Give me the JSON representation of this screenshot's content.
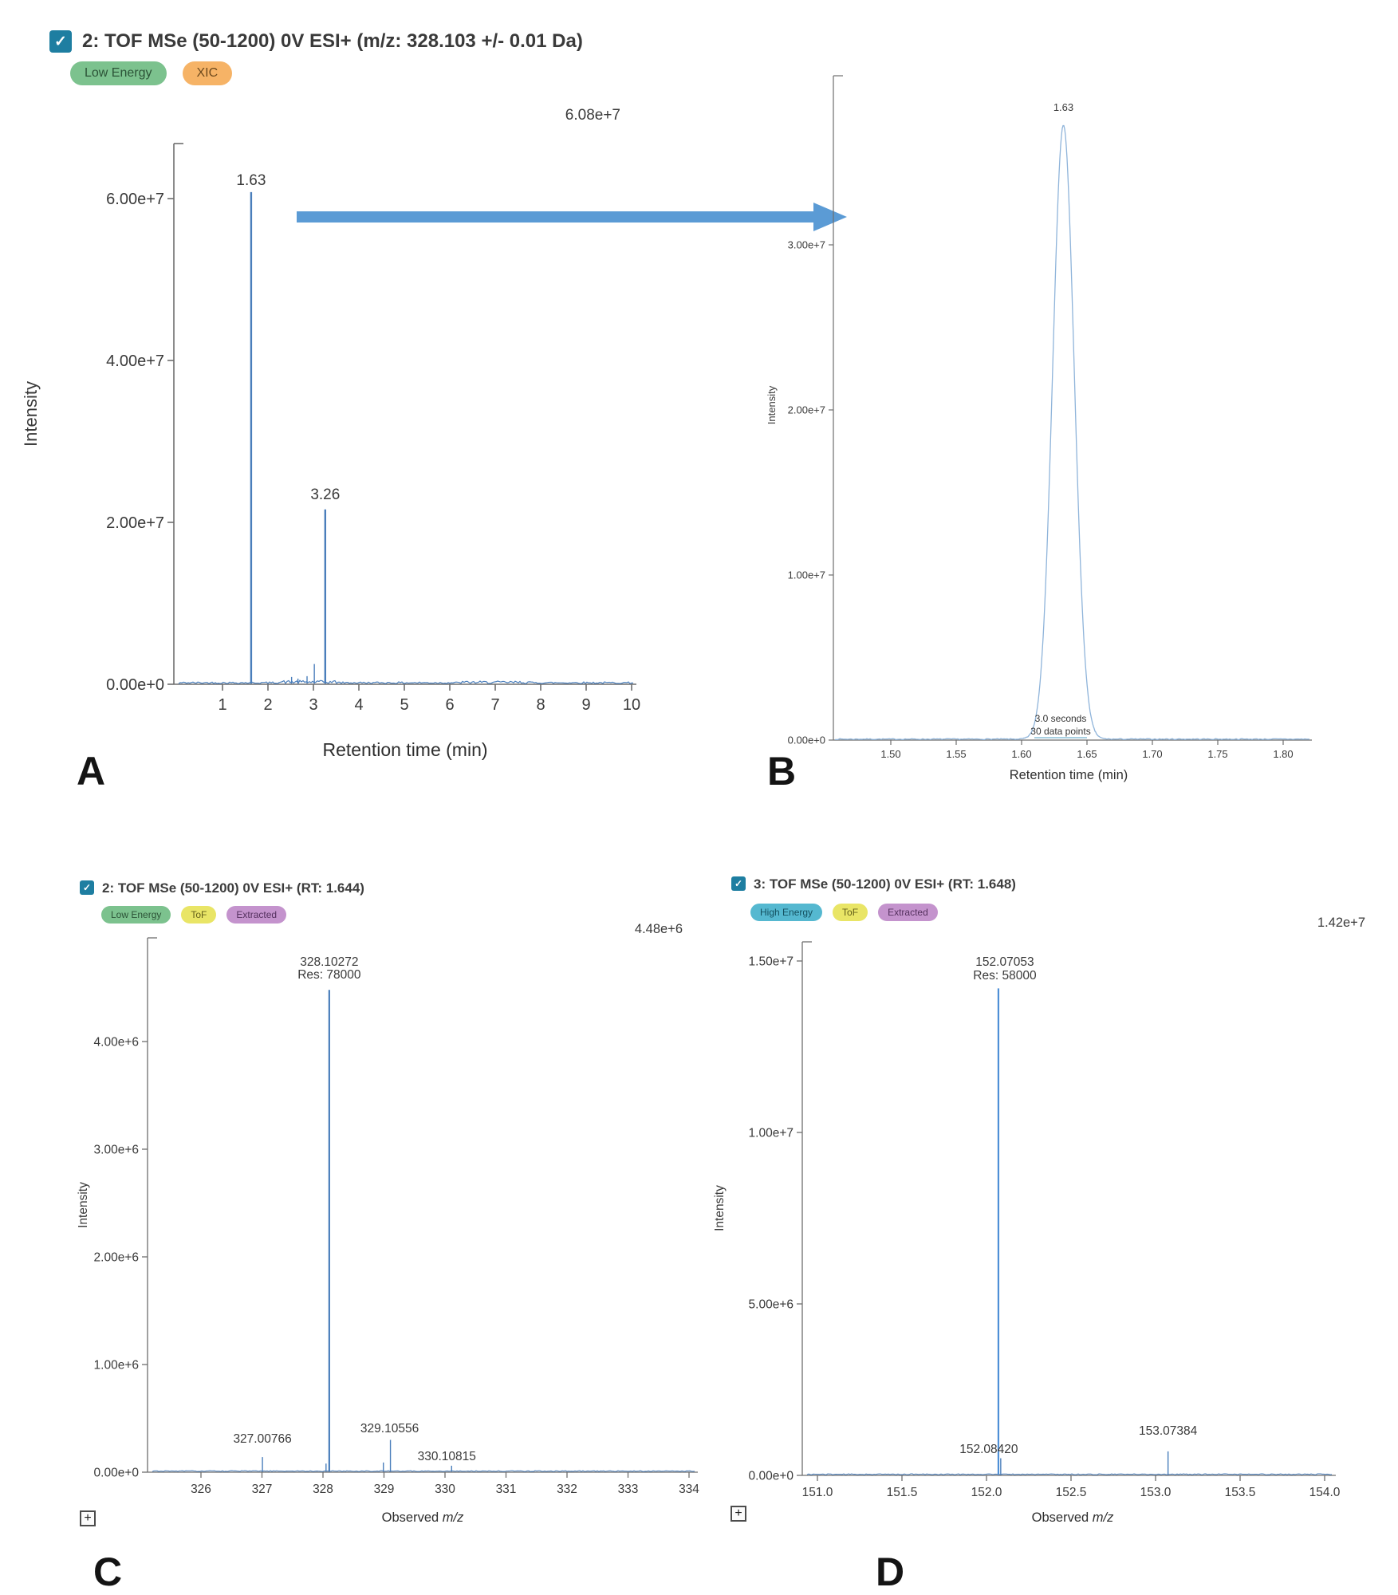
{
  "icons": {
    "check": "✓",
    "plus": "+"
  },
  "colors": {
    "checkbox": "#1e7ea1",
    "trace_blue": "#4a7ebb",
    "zoom_trace_blue": "#8fb4da",
    "main_stick_blue": "#4f8fd6",
    "arrow_blue": "#5b9bd5",
    "axis_gray": "#6e6e6e",
    "text_gray": "#3a3a3a"
  },
  "header": {
    "title": "2: TOF MSe (50-1200) 0V ESI+ (m/z: 328.103 +/- 0.01 Da)",
    "badges": [
      {
        "label": "Low Energy",
        "bg": "#7cc28e",
        "fg": "#2c5337"
      },
      {
        "label": "XIC",
        "bg": "#f6b366",
        "fg": "#6e4a1d"
      }
    ]
  },
  "panels": {
    "A": {
      "letter": "A"
    },
    "B": {
      "letter": "B"
    },
    "C": {
      "letter": "C",
      "zoom_button": "+",
      "header": {
        "title": "2: TOF MSe (50-1200) 0V ESI+ (RT: 1.644)",
        "badges": [
          {
            "label": "Low Energy",
            "bg": "#7cc28e",
            "fg": "#2c5337"
          },
          {
            "label": "ToF",
            "bg": "#e9e566",
            "fg": "#64601a"
          },
          {
            "label": "Extracted",
            "bg": "#c493cd",
            "fg": "#54305e"
          }
        ]
      }
    },
    "D": {
      "letter": "D",
      "zoom_button": "+",
      "header": {
        "title": "3: TOF MSe (50-1200) 0V ESI+ (RT: 1.648)",
        "badges": [
          {
            "label": "High Energy",
            "bg": "#55b8d0",
            "fg": "#14505f"
          },
          {
            "label": "ToF",
            "bg": "#e9e566",
            "fg": "#64601a"
          },
          {
            "label": "Extracted",
            "bg": "#c493cd",
            "fg": "#54305e"
          }
        ]
      }
    }
  },
  "chart_data": [
    {
      "id": "A",
      "type": "line",
      "subtype": "chromatogram",
      "ylabel": "Intensity",
      "xlabel": "Retention time (min)",
      "max_intensity_label": "6.08e+7",
      "xlim": [
        0.35,
        10.1
      ],
      "ylim": [
        0,
        67000000
      ],
      "x_ticks": [
        {
          "v": 1,
          "label": "1"
        },
        {
          "v": 2,
          "label": "2"
        },
        {
          "v": 3,
          "label": "3"
        },
        {
          "v": 4,
          "label": "4"
        },
        {
          "v": 5,
          "label": "5"
        },
        {
          "v": 6,
          "label": "6"
        },
        {
          "v": 7,
          "label": "7"
        },
        {
          "v": 8,
          "label": "8"
        },
        {
          "v": 9,
          "label": "9"
        },
        {
          "v": 10,
          "label": "10"
        }
      ],
      "y_ticks": [
        {
          "v": 0,
          "label": "0.00e+0"
        },
        {
          "v": 20000000,
          "label": "2.00e+7"
        },
        {
          "v": 40000000,
          "label": "4.00e+7"
        },
        {
          "v": 60000000,
          "label": "6.00e+7"
        }
      ],
      "peaks": [
        {
          "x": 1.63,
          "intensity": 60800000,
          "label": "1.63"
        },
        {
          "x": 2.52,
          "intensity": 900000
        },
        {
          "x": 2.66,
          "intensity": 700000
        },
        {
          "x": 2.86,
          "intensity": 1000000
        },
        {
          "x": 3.02,
          "intensity": 2500000
        },
        {
          "x": 3.26,
          "intensity": 21600000,
          "label": "3.26"
        }
      ]
    },
    {
      "id": "B",
      "type": "line",
      "subtype": "chromatogram-zoom",
      "ylabel": "Intensity",
      "xlabel": "Retention time (min)",
      "xlim": [
        1.456,
        1.822
      ],
      "ylim": [
        0,
        40200000
      ],
      "x_ticks": [
        {
          "v": 1.5,
          "label": "1.50"
        },
        {
          "v": 1.55,
          "label": "1.55"
        },
        {
          "v": 1.6,
          "label": "1.60"
        },
        {
          "v": 1.65,
          "label": "1.65"
        },
        {
          "v": 1.7,
          "label": "1.70"
        },
        {
          "v": 1.75,
          "label": "1.75"
        },
        {
          "v": 1.8,
          "label": "1.80"
        }
      ],
      "y_ticks": [
        {
          "v": 0,
          "label": "0.00e+0"
        },
        {
          "v": 10000000,
          "label": "1.00e+7"
        },
        {
          "v": 20000000,
          "label": "2.00e+7"
        },
        {
          "v": 30000000,
          "label": "3.00e+7"
        }
      ],
      "peak": {
        "x": 1.632,
        "intensity": 37200000,
        "label": "1.63",
        "sigma_min": 0.0082
      },
      "annotations": [
        "3.0 seconds",
        "30 data points"
      ]
    },
    {
      "id": "C",
      "type": "bar",
      "subtype": "mass-spectrum",
      "ylabel": "Intensity",
      "xlabel_prefix": "Observed ",
      "xlabel_italic": "m/z",
      "max_intensity_label": "4.48e+6",
      "xlim": [
        325.45,
        334.3
      ],
      "ylim": [
        0,
        4960000
      ],
      "x_ticks": [
        {
          "v": 326,
          "label": "326"
        },
        {
          "v": 327,
          "label": "327"
        },
        {
          "v": 328,
          "label": "328"
        },
        {
          "v": 329,
          "label": "329"
        },
        {
          "v": 330,
          "label": "330"
        },
        {
          "v": 331,
          "label": "331"
        },
        {
          "v": 332,
          "label": "332"
        },
        {
          "v": 333,
          "label": "333"
        },
        {
          "v": 334,
          "label": "334"
        }
      ],
      "y_ticks": [
        {
          "v": 0,
          "label": "0.00e+0"
        },
        {
          "v": 1000000,
          "label": "1.00e+6"
        },
        {
          "v": 2000000,
          "label": "2.00e+6"
        },
        {
          "v": 3000000,
          "label": "3.00e+6"
        },
        {
          "v": 4000000,
          "label": "4.00e+6"
        }
      ],
      "peaks": [
        {
          "x": 327.00766,
          "intensity": 140000,
          "label": "327.00766"
        },
        {
          "x": 328.05,
          "intensity": 80000
        },
        {
          "x": 328.10272,
          "intensity": 4480000,
          "label": "328.10272",
          "sublabel": "Res: 78000"
        },
        {
          "x": 328.99,
          "intensity": 90000
        },
        {
          "x": 329.10556,
          "intensity": 300000,
          "label": "329.10556"
        },
        {
          "x": 330.10815,
          "intensity": 60000,
          "label": "330.10815"
        }
      ]
    },
    {
      "id": "D",
      "type": "bar",
      "subtype": "mass-spectrum",
      "ylabel": "Intensity",
      "xlabel_prefix": "Observed ",
      "xlabel_italic": "m/z",
      "max_intensity_label": "1.42e+7",
      "xlim": [
        150.9,
        154.12
      ],
      "ylim": [
        0,
        15600000
      ],
      "x_ticks": [
        {
          "v": 151.0,
          "label": "151.0"
        },
        {
          "v": 151.5,
          "label": "151.5"
        },
        {
          "v": 152.0,
          "label": "152.0"
        },
        {
          "v": 152.5,
          "label": "152.5"
        },
        {
          "v": 153.0,
          "label": "153.0"
        },
        {
          "v": 153.5,
          "label": "153.5"
        },
        {
          "v": 154.0,
          "label": "154.0"
        }
      ],
      "y_ticks": [
        {
          "v": 0,
          "label": "0.00e+0"
        },
        {
          "v": 5000000,
          "label": "5.00e+6"
        },
        {
          "v": 10000000,
          "label": "1.00e+7"
        },
        {
          "v": 15000000,
          "label": "1.50e+7"
        }
      ],
      "peaks": [
        {
          "x": 152.07053,
          "intensity": 14200000,
          "label": "152.07053",
          "sublabel": "Res: 58000"
        },
        {
          "x": 152.0842,
          "intensity": 500000,
          "label": "152.08420"
        },
        {
          "x": 153.07384,
          "intensity": 700000,
          "label": "153.07384"
        }
      ]
    }
  ]
}
